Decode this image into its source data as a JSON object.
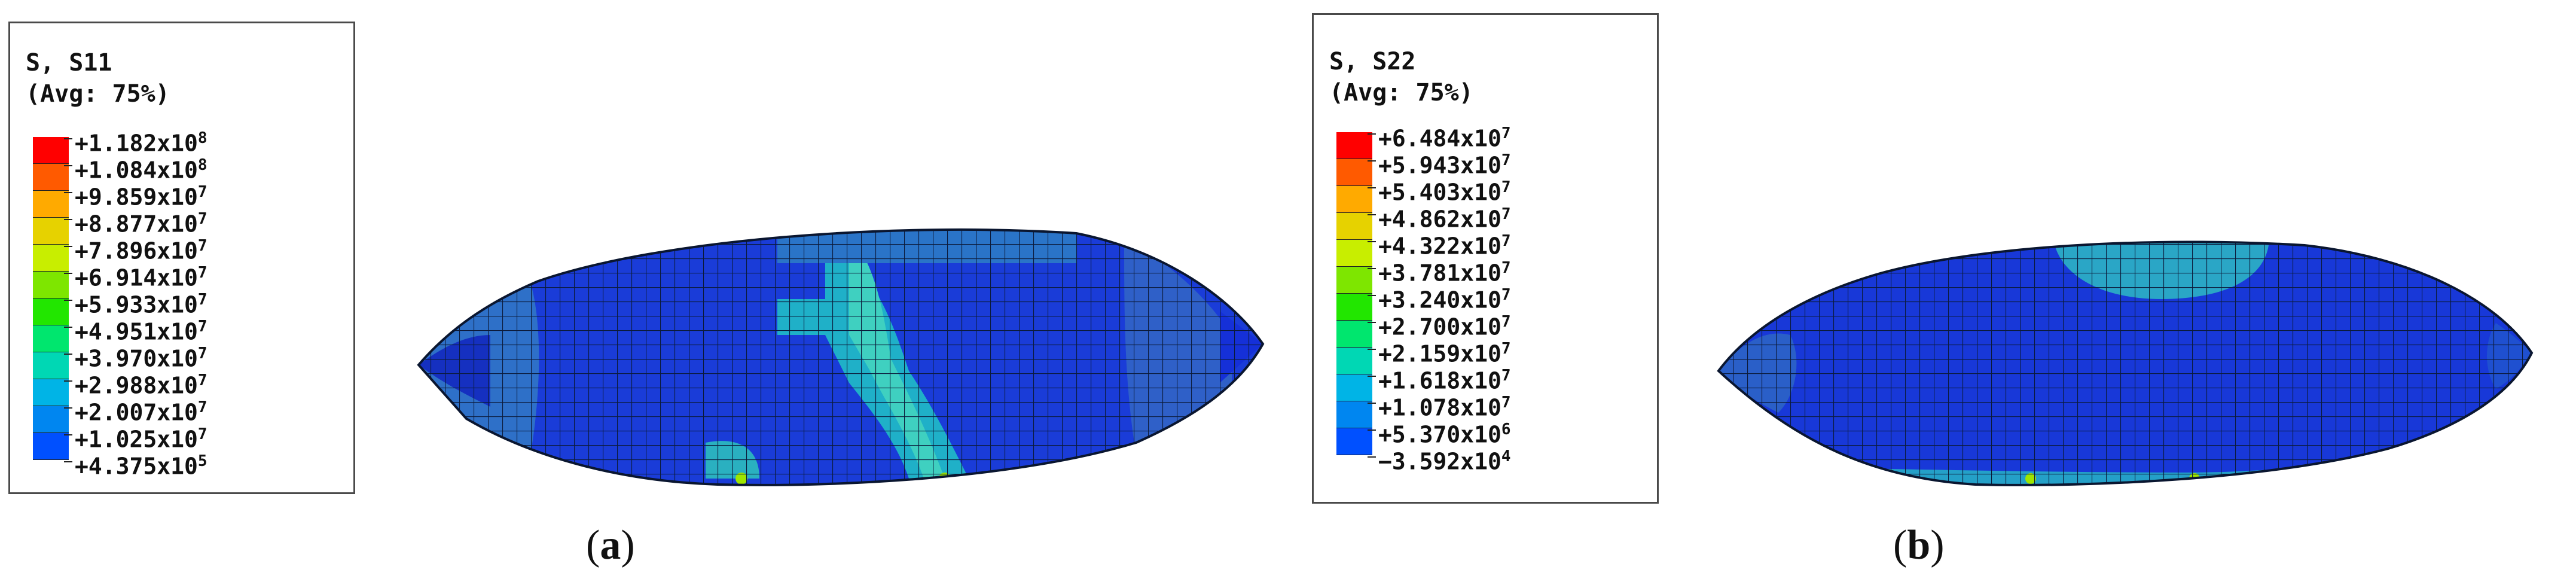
{
  "panels": [
    {
      "id": "a",
      "caption_letter": "a",
      "legend": {
        "variable": "S, S11",
        "averaging": "(Avg: 75%)",
        "levels": [
          "+1.182x10^8",
          "+1.084x10^8",
          "+9.859x10^7",
          "+8.877x10^7",
          "+7.896x10^7",
          "+6.914x10^7",
          "+5.933x10^7",
          "+4.951x10^7",
          "+3.970x10^7",
          "+2.988x10^7",
          "+2.007x10^7",
          "+1.025x10^7",
          "+4.375x10^5"
        ],
        "colors": [
          "#ff0000",
          "#ff5a00",
          "#ffaa00",
          "#e6d200",
          "#c8ee00",
          "#7ee600",
          "#22e600",
          "#00e66e",
          "#00d7b4",
          "#00b4e6",
          "#0086f0",
          "#0050ff",
          "#0000ff"
        ]
      }
    },
    {
      "id": "b",
      "caption_letter": "b",
      "legend": {
        "variable": "S, S22",
        "averaging": "(Avg: 75%)",
        "levels": [
          "+6.484x10^7",
          "+5.943x10^7",
          "+5.403x10^7",
          "+4.862x10^7",
          "+4.322x10^7",
          "+3.781x10^7",
          "+3.240x10^7",
          "+2.700x10^7",
          "+2.159x10^7",
          "+1.618x10^7",
          "+1.078x10^7",
          "+5.370x10^6",
          "−3.592x10^4"
        ],
        "colors": [
          "#ff0000",
          "#ff5a00",
          "#ffaa00",
          "#e6d200",
          "#c8ee00",
          "#7ee600",
          "#22e600",
          "#00e66e",
          "#00d7b4",
          "#00b4e6",
          "#0086f0",
          "#0050ff",
          "#0000ff"
        ]
      }
    }
  ]
}
